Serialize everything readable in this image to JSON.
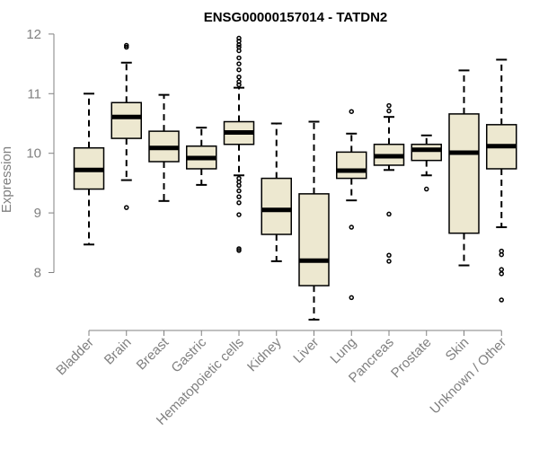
{
  "chart_data": {
    "type": "boxplot",
    "title": "ENSG00000157014 - TATDN2",
    "xlabel": "",
    "ylabel": "Expression",
    "ylim": [
      7.0,
      12.0
    ],
    "yticks": [
      8,
      9,
      10,
      11,
      12
    ],
    "colors": {
      "box_fill": "#ede8d0",
      "stroke": "#000000",
      "axis": "#808080"
    },
    "categories": [
      "Bladder",
      "Brain",
      "Breast",
      "Gastric",
      "Hematopoietic cells",
      "Kidney",
      "Liver",
      "Lung",
      "Pancreas",
      "Prostate",
      "Skin",
      "Unknown / Other"
    ],
    "boxes": [
      {
        "category": "Bladder",
        "whisker_low": 8.47,
        "q1": 9.4,
        "median": 9.72,
        "q3": 10.09,
        "whisker_high": 11.0,
        "outliers": []
      },
      {
        "category": "Brain",
        "whisker_low": 9.55,
        "q1": 10.25,
        "median": 10.61,
        "q3": 10.85,
        "whisker_high": 11.52,
        "outliers": [
          9.09,
          11.78,
          11.81
        ]
      },
      {
        "category": "Breast",
        "whisker_low": 9.2,
        "q1": 9.86,
        "median": 10.09,
        "q3": 10.37,
        "whisker_high": 10.98,
        "outliers": []
      },
      {
        "category": "Gastric",
        "whisker_low": 9.47,
        "q1": 9.74,
        "median": 9.92,
        "q3": 10.12,
        "whisker_high": 10.43,
        "outliers": []
      },
      {
        "category": "Hematopoietic cells",
        "whisker_low": 9.63,
        "q1": 10.15,
        "median": 10.35,
        "q3": 10.53,
        "whisker_high": 11.1,
        "outliers": [
          8.37,
          8.4,
          8.97,
          9.17,
          9.27,
          9.37,
          9.46,
          9.52,
          9.58,
          11.15,
          11.2,
          11.28,
          11.4,
          11.5,
          11.6,
          11.72,
          11.78,
          11.82,
          11.88,
          11.93
        ]
      },
      {
        "category": "Kidney",
        "whisker_low": 8.19,
        "q1": 8.64,
        "median": 9.05,
        "q3": 9.58,
        "whisker_high": 10.5,
        "outliers": []
      },
      {
        "category": "Liver",
        "whisker_low": 7.21,
        "q1": 7.78,
        "median": 8.2,
        "q3": 9.32,
        "whisker_high": 10.53,
        "outliers": []
      },
      {
        "category": "Lung",
        "whisker_low": 9.21,
        "q1": 9.58,
        "median": 9.71,
        "q3": 10.02,
        "whisker_high": 10.33,
        "outliers": [
          7.58,
          8.76,
          10.7
        ]
      },
      {
        "category": "Pancreas",
        "whisker_low": 9.72,
        "q1": 9.8,
        "median": 9.95,
        "q3": 10.15,
        "whisker_high": 10.61,
        "outliers": [
          8.19,
          8.29,
          8.98,
          10.71,
          10.8
        ]
      },
      {
        "category": "Prostate",
        "whisker_low": 9.63,
        "q1": 9.88,
        "median": 10.06,
        "q3": 10.15,
        "whisker_high": 10.3,
        "outliers": [
          9.4
        ]
      },
      {
        "category": "Skin",
        "whisker_low": 8.12,
        "q1": 8.66,
        "median": 10.01,
        "q3": 10.66,
        "whisker_high": 11.39,
        "outliers": []
      },
      {
        "category": "Unknown / Other",
        "whisker_low": 8.76,
        "q1": 9.74,
        "median": 10.12,
        "q3": 10.48,
        "whisker_high": 11.57,
        "outliers": [
          7.54,
          7.98,
          8.05,
          8.3,
          8.36
        ]
      }
    ]
  }
}
